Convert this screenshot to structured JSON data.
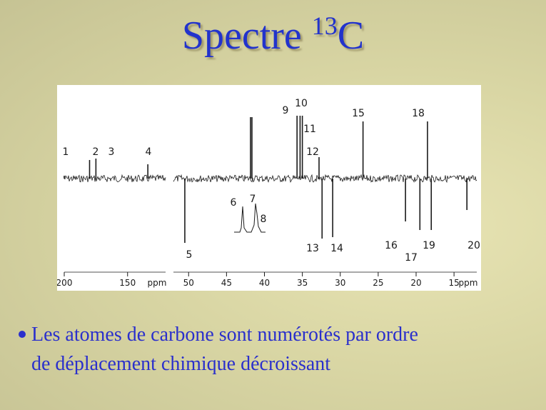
{
  "slide": {
    "title_main": "Spectre ",
    "title_sup": "13",
    "title_tail": "C",
    "bullet_line1": "Les atomes de carbone sont numérotés par ordre",
    "bullet_line2": "de déplacement chimique décroissant"
  },
  "colors": {
    "title": "#2233cc",
    "bullet": "#2a2fcc",
    "spectrum": "#1a1a1a"
  },
  "chart_data": {
    "type": "line",
    "xlabel": "ppm",
    "panels": [
      {
        "name": "left",
        "x_range": [
          200,
          120
        ],
        "ticks": [
          "200",
          "150",
          "ppm"
        ],
        "tick_values": [
          200,
          150,
          null
        ],
        "peaks": [
          {
            "label": "1",
            "x": 200,
            "height": 0.3
          },
          {
            "label": "2",
            "x": 180,
            "height": 1
          },
          {
            "label": "3",
            "x": 175,
            "height": 1
          },
          {
            "label": "4",
            "x": 134,
            "height": 1
          }
        ]
      },
      {
        "name": "right",
        "x_range": [
          52,
          12
        ],
        "ticks": [
          "50",
          "45",
          "40",
          "35",
          "30",
          "25",
          "20",
          "15",
          "ppm"
        ],
        "tick_values": [
          50,
          45,
          40,
          35,
          30,
          25,
          20,
          15,
          null
        ],
        "peaks": [
          {
            "label": "5",
            "x": 50.5,
            "height": -1
          },
          {
            "label": "9",
            "x": 35.7,
            "height": 1
          },
          {
            "label": "10",
            "x": 35.3,
            "height": 1
          },
          {
            "label": "11",
            "x": 35.0,
            "height": 1
          },
          {
            "label": "12",
            "x": 32.8,
            "height": 1
          },
          {
            "label": "13",
            "x": 32.4,
            "height": -1
          },
          {
            "label": "14",
            "x": 31.0,
            "height": -1
          },
          {
            "label": "15",
            "x": 27.0,
            "height": 1
          },
          {
            "label": "16",
            "x": 21.4,
            "height": -1
          },
          {
            "label": "17",
            "x": 19.5,
            "height": -1
          },
          {
            "label": "18",
            "x": 18.5,
            "height": 1
          },
          {
            "label": "19",
            "x": 18.0,
            "height": -1
          },
          {
            "label": "20",
            "x": 13.3,
            "height": -1
          }
        ]
      }
    ],
    "inset_labels": [
      "6",
      "7",
      "8"
    ]
  }
}
